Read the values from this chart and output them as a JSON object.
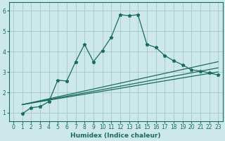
{
  "xlabel": "Humidex (Indice chaleur)",
  "ylabel": "",
  "xlim": [
    -0.5,
    23.5
  ],
  "ylim": [
    0.6,
    6.4
  ],
  "bg_color": "#cce8e8",
  "grid_color": "#aacccc",
  "line_color": "#1a6b5a",
  "x_ticks": [
    0,
    1,
    2,
    3,
    4,
    5,
    6,
    7,
    8,
    9,
    10,
    11,
    12,
    13,
    14,
    15,
    16,
    17,
    18,
    19,
    20,
    21,
    22,
    23
  ],
  "y_ticks": [
    1,
    2,
    3,
    4,
    5,
    6
  ],
  "line1_x": [
    1,
    2,
    3,
    4,
    5,
    6,
    7,
    8,
    9,
    10,
    11,
    12,
    13,
    14,
    15,
    16,
    17,
    18,
    19,
    20,
    21,
    22,
    23
  ],
  "line1_y": [
    0.95,
    1.25,
    1.3,
    1.55,
    2.6,
    2.55,
    3.5,
    4.35,
    3.5,
    4.05,
    4.7,
    5.8,
    5.75,
    5.8,
    4.35,
    4.2,
    3.8,
    3.55,
    3.35,
    3.1,
    3.05,
    2.95,
    2.85
  ],
  "line2_x": [
    1,
    23
  ],
  "line2_y": [
    1.4,
    3.5
  ],
  "line3_x": [
    1,
    23
  ],
  "line3_y": [
    1.4,
    3.2
  ],
  "line4_x": [
    1,
    23
  ],
  "line4_y": [
    1.4,
    3.0
  ],
  "tick_fontsize": 5.5,
  "xlabel_fontsize": 6.5
}
